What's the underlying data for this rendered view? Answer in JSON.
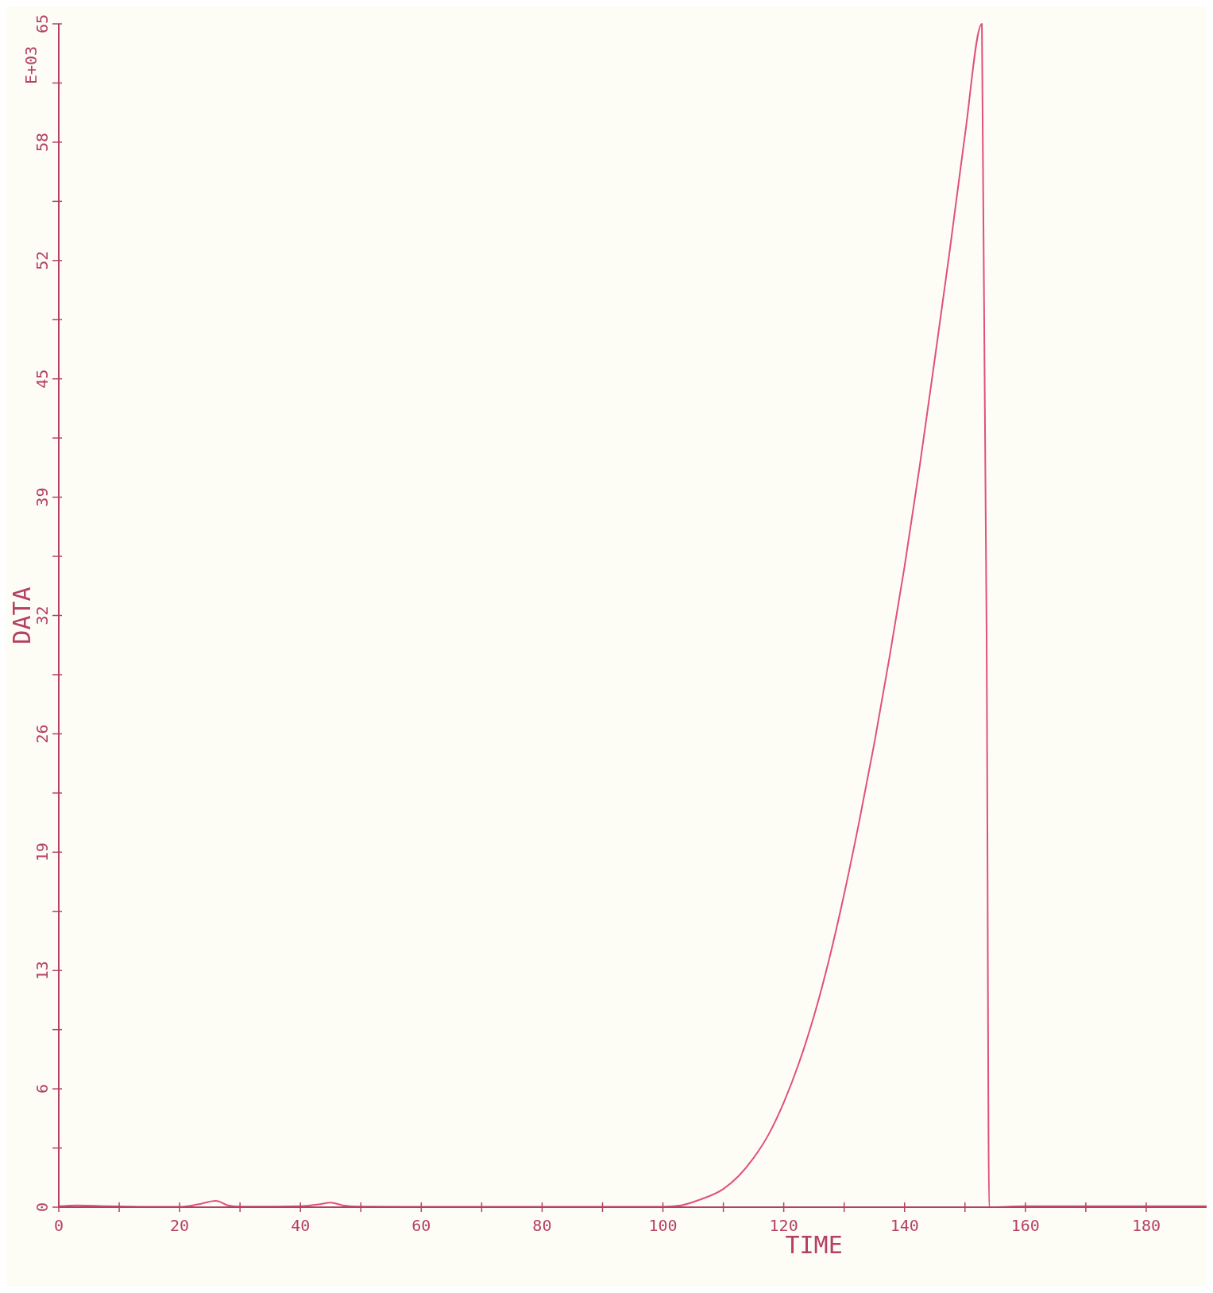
{
  "chart_data": {
    "type": "line",
    "xlabel": "TIME",
    "ylabel": "DATA",
    "annotations": [
      "E+03"
    ],
    "x": [
      0,
      3,
      8,
      15,
      20,
      23,
      26,
      28,
      30,
      36,
      40,
      43,
      45,
      47,
      50,
      60,
      80,
      100,
      103,
      106,
      110,
      112.5,
      115,
      117.5,
      120,
      122.5,
      125,
      127.5,
      130,
      132.5,
      135,
      137.5,
      140,
      142.5,
      145,
      147.5,
      150,
      152.8,
      153.6,
      154,
      160,
      180,
      190
    ],
    "series": [
      {
        "color": "#e0507a",
        "values": [
          0.05,
          0.1,
          0.05,
          0.02,
          0.02,
          0.15,
          0.35,
          0.1,
          0.03,
          0.03,
          0.05,
          0.15,
          0.25,
          0.1,
          0.03,
          0.02,
          0.02,
          0.02,
          0.1,
          0.4,
          1.0,
          1.7,
          2.7,
          4.0,
          5.75,
          7.9,
          10.5,
          13.6,
          17.2,
          21.2,
          25.5,
          30.2,
          35.2,
          40.7,
          46.6,
          52.6,
          58.9,
          65,
          30,
          0,
          0.05,
          0.05,
          0.05
        ]
      }
    ],
    "xlim": [
      0,
      190
    ],
    "ylim": [
      0,
      65
    ],
    "xticks": [
      0,
      {
        "value": 10,
        "label": null
      },
      20,
      {
        "value": 30,
        "label": null
      },
      40,
      {
        "value": 50,
        "label": null
      },
      60,
      {
        "value": 70,
        "label": null
      },
      80,
      {
        "value": 90,
        "label": null
      },
      100,
      {
        "value": 110,
        "label": null
      },
      120,
      {
        "value": 130,
        "label": null
      },
      140,
      {
        "value": 150,
        "label": null
      },
      160,
      {
        "value": 170,
        "label": null
      },
      180
    ],
    "yticks": [
      0,
      {
        "value": 3.25,
        "label": null
      },
      {
        "value": 6.5,
        "label": "6"
      },
      {
        "value": 9.75,
        "label": null
      },
      13,
      {
        "value": 16.25,
        "label": null
      },
      {
        "value": 19.5,
        "label": "19"
      },
      {
        "value": 22.75,
        "label": null
      },
      26,
      {
        "value": 29.25,
        "label": null
      },
      {
        "value": 32.5,
        "label": "32"
      },
      {
        "value": 35.75,
        "label": null
      },
      39,
      {
        "value": 42.25,
        "label": null
      },
      {
        "value": 45.5,
        "label": "45"
      },
      {
        "value": 48.75,
        "label": null
      },
      52,
      {
        "value": 55.25,
        "label": null
      },
      {
        "value": 58.5,
        "label": "58"
      },
      {
        "value": 61.75,
        "label": null
      },
      65
    ],
    "grid": false,
    "marker": "none",
    "line_style": "solid"
  }
}
